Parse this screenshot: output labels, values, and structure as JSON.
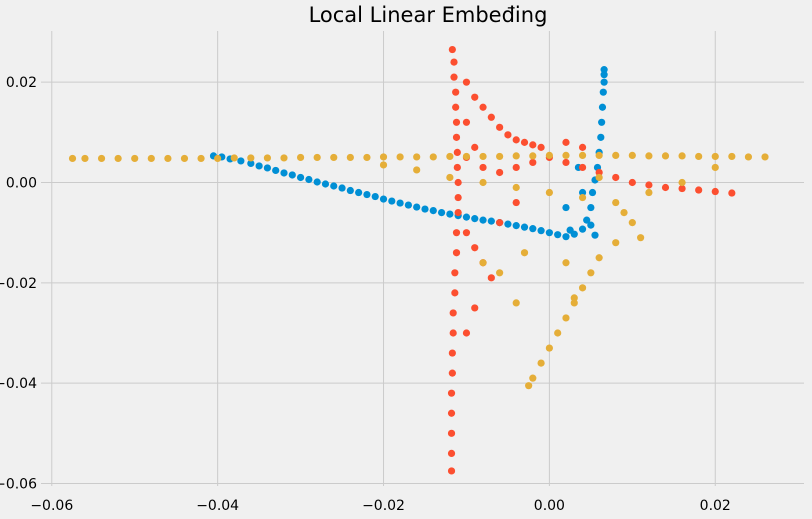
{
  "chart_data": {
    "type": "scatter",
    "title": "Local Linear Embeđing",
    "xlabel": "",
    "ylabel": "",
    "xlim": [
      -0.0613,
      0.0307
    ],
    "ylim": [
      -0.0605,
      0.0302
    ],
    "grid": true,
    "xticks": [
      -0.06,
      -0.04,
      -0.02,
      0.0,
      0.02
    ],
    "xtick_labels": [
      "−0.06",
      "−0.04",
      "−0.02",
      "0.00",
      "0.02"
    ],
    "yticks": [
      0.02,
      0.0,
      -0.02,
      -0.04,
      -0.06
    ],
    "ytick_labels": [
      "0.02",
      "0.00",
      "−0.02",
      "−0.04",
      "−0.06"
    ],
    "colors": [
      "#008fd5",
      "#fc4f30",
      "#e5ae38"
    ],
    "series": [
      {
        "color": "#008fd5",
        "points": [
          [
            -0.0405,
            0.0053
          ],
          [
            -0.0395,
            0.0051
          ],
          [
            -0.0385,
            0.0047
          ],
          [
            -0.0372,
            0.0043
          ],
          [
            -0.036,
            0.0038
          ],
          [
            -0.035,
            0.0033
          ],
          [
            -0.034,
            0.0029
          ],
          [
            -0.033,
            0.0024
          ],
          [
            -0.032,
            0.0019
          ],
          [
            -0.031,
            0.0015
          ],
          [
            -0.03,
            0.001
          ],
          [
            -0.029,
            0.0006
          ],
          [
            -0.028,
            0.0001
          ],
          [
            -0.027,
            -0.0003
          ],
          [
            -0.026,
            -0.0007
          ],
          [
            -0.025,
            -0.0011
          ],
          [
            -0.024,
            -0.0016
          ],
          [
            -0.023,
            -0.002
          ],
          [
            -0.022,
            -0.0024
          ],
          [
            -0.021,
            -0.0028
          ],
          [
            -0.02,
            -0.0033
          ],
          [
            -0.019,
            -0.0037
          ],
          [
            -0.018,
            -0.0041
          ],
          [
            -0.017,
            -0.0045
          ],
          [
            -0.016,
            -0.0049
          ],
          [
            -0.015,
            -0.0053
          ],
          [
            -0.014,
            -0.0056
          ],
          [
            -0.013,
            -0.006
          ],
          [
            -0.012,
            -0.0063
          ],
          [
            -0.011,
            -0.0066
          ],
          [
            -0.01,
            -0.0069
          ],
          [
            -0.009,
            -0.0072
          ],
          [
            -0.008,
            -0.0075
          ],
          [
            -0.007,
            -0.0077
          ],
          [
            -0.006,
            -0.008
          ],
          [
            -0.005,
            -0.0083
          ],
          [
            -0.004,
            -0.0086
          ],
          [
            -0.003,
            -0.0089
          ],
          [
            -0.002,
            -0.0092
          ],
          [
            -0.001,
            -0.0096
          ],
          [
            0.0,
            -0.01
          ],
          [
            0.001,
            -0.0104
          ],
          [
            0.002,
            -0.0108
          ],
          [
            0.003,
            -0.0103
          ],
          [
            0.004,
            -0.0093
          ],
          [
            0.0045,
            -0.0075
          ],
          [
            0.005,
            -0.005
          ],
          [
            0.0052,
            -0.002
          ],
          [
            0.0055,
            0.0005
          ],
          [
            0.0058,
            0.003
          ],
          [
            0.006,
            0.006
          ],
          [
            0.0062,
            0.009
          ],
          [
            0.0063,
            0.012
          ],
          [
            0.0064,
            0.015
          ],
          [
            0.0065,
            0.018
          ],
          [
            0.0066,
            0.02
          ],
          [
            0.0066,
            0.0215
          ],
          [
            0.0066,
            0.0225
          ],
          [
            0.004,
            -0.002
          ],
          [
            0.002,
            -0.005
          ],
          [
            0.005,
            -0.0085
          ],
          [
            0.0025,
            -0.0095
          ],
          [
            0.0035,
            0.003
          ],
          [
            0.0055,
            -0.0105
          ]
        ]
      },
      {
        "color": "#fc4f30",
        "points": [
          [
            -0.0117,
            0.0265
          ],
          [
            -0.0115,
            0.024
          ],
          [
            -0.0115,
            0.021
          ],
          [
            -0.0113,
            0.018
          ],
          [
            -0.0113,
            0.015
          ],
          [
            -0.0112,
            0.012
          ],
          [
            -0.0112,
            0.009
          ],
          [
            -0.0111,
            0.006
          ],
          [
            -0.0111,
            0.003
          ],
          [
            -0.011,
            0.0
          ],
          [
            -0.011,
            -0.003
          ],
          [
            -0.011,
            -0.006
          ],
          [
            -0.0112,
            -0.01
          ],
          [
            -0.0112,
            -0.014
          ],
          [
            -0.0114,
            -0.018
          ],
          [
            -0.0114,
            -0.022
          ],
          [
            -0.0116,
            -0.026
          ],
          [
            -0.0116,
            -0.03
          ],
          [
            -0.0117,
            -0.034
          ],
          [
            -0.0117,
            -0.038
          ],
          [
            -0.0118,
            -0.042
          ],
          [
            -0.0118,
            -0.046
          ],
          [
            -0.0118,
            -0.05
          ],
          [
            -0.0118,
            -0.054
          ],
          [
            -0.0118,
            -0.0575
          ],
          [
            -0.01,
            0.02
          ],
          [
            -0.009,
            0.017
          ],
          [
            -0.008,
            0.015
          ],
          [
            -0.007,
            0.013
          ],
          [
            -0.006,
            0.011
          ],
          [
            -0.005,
            0.0095
          ],
          [
            -0.004,
            0.0085
          ],
          [
            -0.003,
            0.008
          ],
          [
            -0.002,
            0.0075
          ],
          [
            -0.001,
            0.007
          ],
          [
            -0.01,
            0.005
          ],
          [
            -0.008,
            0.003
          ],
          [
            -0.006,
            0.002
          ],
          [
            -0.004,
            0.003
          ],
          [
            -0.002,
            0.004
          ],
          [
            0.0,
            0.005
          ],
          [
            0.002,
            0.004
          ],
          [
            0.004,
            0.003
          ],
          [
            0.006,
            0.002
          ],
          [
            0.008,
            0.001
          ],
          [
            0.01,
            0.0
          ],
          [
            0.012,
            -0.0005
          ],
          [
            0.014,
            -0.001
          ],
          [
            0.016,
            -0.0012
          ],
          [
            0.018,
            -0.0015
          ],
          [
            0.02,
            -0.0018
          ],
          [
            0.022,
            -0.0021
          ],
          [
            -0.01,
            -0.01
          ],
          [
            -0.009,
            -0.013
          ],
          [
            -0.008,
            -0.016
          ],
          [
            -0.007,
            -0.019
          ],
          [
            -0.009,
            -0.025
          ],
          [
            -0.01,
            -0.03
          ],
          [
            -0.006,
            -0.008
          ],
          [
            -0.004,
            -0.004
          ],
          [
            0.002,
            0.008
          ],
          [
            0.004,
            0.007
          ],
          [
            -0.01,
            0.012
          ],
          [
            -0.009,
            0.007
          ]
        ]
      },
      {
        "color": "#e5ae38",
        "points": [
          [
            -0.0575,
            0.0048
          ],
          [
            -0.056,
            0.0048
          ],
          [
            -0.054,
            0.0048
          ],
          [
            -0.052,
            0.0048
          ],
          [
            -0.05,
            0.0048
          ],
          [
            -0.048,
            0.0048
          ],
          [
            -0.046,
            0.0048
          ],
          [
            -0.044,
            0.0048
          ],
          [
            -0.042,
            0.0048
          ],
          [
            -0.04,
            0.0048
          ],
          [
            -0.038,
            0.0049
          ],
          [
            -0.036,
            0.0049
          ],
          [
            -0.034,
            0.0049
          ],
          [
            -0.032,
            0.0049
          ],
          [
            -0.03,
            0.005
          ],
          [
            -0.028,
            0.005
          ],
          [
            -0.026,
            0.005
          ],
          [
            -0.024,
            0.005
          ],
          [
            -0.022,
            0.005
          ],
          [
            -0.02,
            0.0051
          ],
          [
            -0.018,
            0.0051
          ],
          [
            -0.016,
            0.0051
          ],
          [
            -0.014,
            0.0051
          ],
          [
            -0.012,
            0.0052
          ],
          [
            -0.01,
            0.0052
          ],
          [
            -0.008,
            0.0052
          ],
          [
            -0.006,
            0.0052
          ],
          [
            -0.004,
            0.0053
          ],
          [
            -0.002,
            0.0053
          ],
          [
            0.0,
            0.0054
          ],
          [
            0.002,
            0.0054
          ],
          [
            0.004,
            0.0054
          ],
          [
            0.006,
            0.0054
          ],
          [
            0.008,
            0.0054
          ],
          [
            0.01,
            0.0054
          ],
          [
            0.012,
            0.0053
          ],
          [
            0.014,
            0.0053
          ],
          [
            0.016,
            0.0053
          ],
          [
            0.018,
            0.0052
          ],
          [
            0.02,
            0.0052
          ],
          [
            0.022,
            0.0052
          ],
          [
            0.024,
            0.0051
          ],
          [
            0.026,
            0.0051
          ],
          [
            -0.02,
            0.0035
          ],
          [
            -0.016,
            0.0025
          ],
          [
            -0.012,
            0.001
          ],
          [
            -0.008,
            0.0
          ],
          [
            -0.004,
            -0.001
          ],
          [
            0.0,
            -0.002
          ],
          [
            0.004,
            -0.003
          ],
          [
            0.008,
            -0.004
          ],
          [
            0.012,
            -0.002
          ],
          [
            0.016,
            0.0
          ],
          [
            0.02,
            0.003
          ],
          [
            0.01,
            -0.008
          ],
          [
            0.008,
            -0.012
          ],
          [
            0.006,
            -0.015
          ],
          [
            0.005,
            -0.018
          ],
          [
            0.004,
            -0.021
          ],
          [
            0.003,
            -0.024
          ],
          [
            0.002,
            -0.027
          ],
          [
            0.001,
            -0.03
          ],
          [
            0.0,
            -0.033
          ],
          [
            -0.001,
            -0.036
          ],
          [
            -0.002,
            -0.039
          ],
          [
            -0.0025,
            -0.0405
          ],
          [
            -0.004,
            -0.024
          ],
          [
            -0.006,
            -0.018
          ],
          [
            -0.008,
            -0.016
          ],
          [
            -0.003,
            -0.014
          ],
          [
            0.002,
            -0.016
          ],
          [
            0.003,
            -0.023
          ],
          [
            0.006,
            0.001
          ],
          [
            0.009,
            -0.006
          ],
          [
            0.011,
            -0.011
          ]
        ]
      }
    ]
  }
}
